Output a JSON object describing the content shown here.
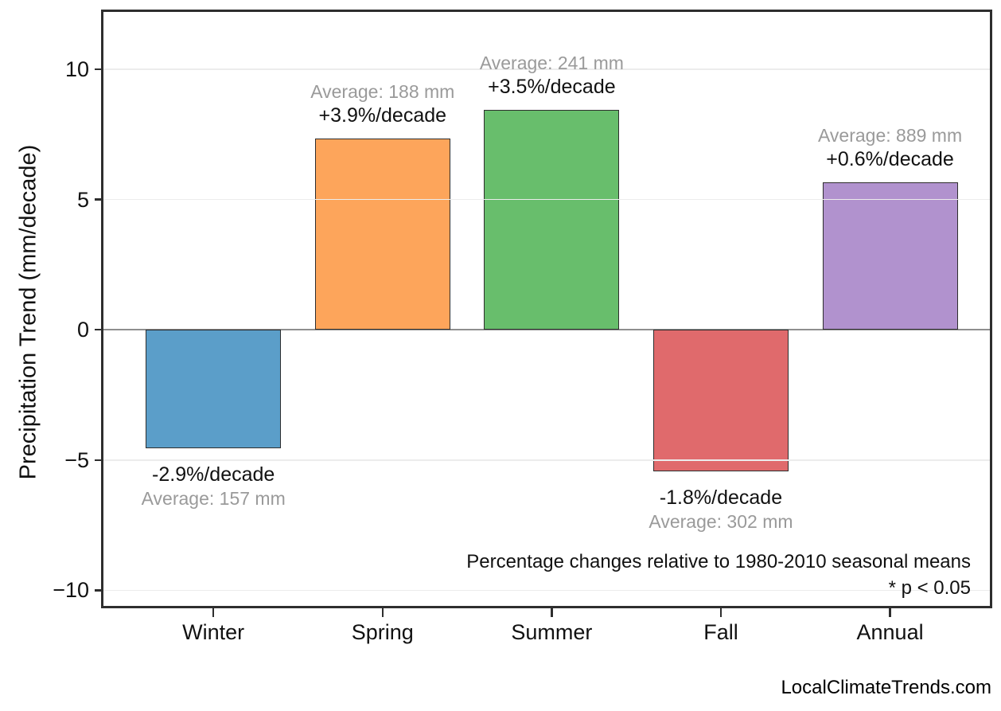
{
  "figure": {
    "watermark": "LocalClimateTrends.com"
  },
  "chart_data": {
    "type": "bar",
    "title": "",
    "categories": [
      "Winter",
      "Spring",
      "Summer",
      "Fall",
      "Annual"
    ],
    "values": [
      -4.55,
      7.33,
      8.44,
      -5.44,
      5.67
    ],
    "bar_colors": [
      "#5B9EC9",
      "#FDA55B",
      "#68BE6C",
      "#E06A6C",
      "#B192CE"
    ],
    "bar_edge_color": "#2e2e2e",
    "bar_labels": [
      {
        "percent": "-2.9%/decade",
        "average": "Average: 157 mm"
      },
      {
        "percent": "+3.9%/decade",
        "average": "Average: 188 mm"
      },
      {
        "percent": "+3.5%/decade",
        "average": "Average: 241 mm"
      },
      {
        "percent": "-1.8%/decade",
        "average": "Average: 302 mm"
      },
      {
        "percent": "+0.6%/decade",
        "average": "Average: 889 mm"
      }
    ],
    "xlabel": "",
    "ylabel": "Precipitation Trend (mm/decade)",
    "yticks": [
      {
        "value": 10,
        "label": "10"
      },
      {
        "value": 5,
        "label": "5"
      },
      {
        "value": 0,
        "label": "0"
      },
      {
        "value": -5,
        "label": "−5"
      },
      {
        "value": -10,
        "label": "−10"
      }
    ],
    "ylim": [
      -10.6,
      12.2
    ],
    "xlim": [
      -0.65,
      4.59
    ],
    "bar_width": 0.8,
    "grid": "horizontal",
    "legend": "none",
    "annotation": [
      "Percentage changes relative to 1980-2010 seasonal means",
      "* p < 0.05"
    ]
  }
}
